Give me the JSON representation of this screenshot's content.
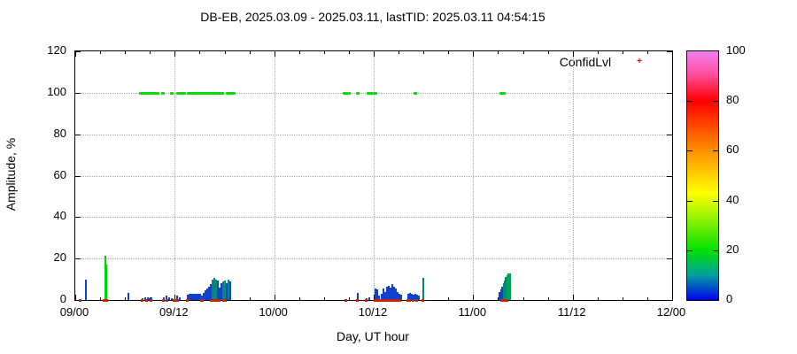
{
  "title": "DB-EB, 2025.03.09 - 2025.03.11, lastTID: 2025.03.11 04:54:15",
  "legend": {
    "label": "ConfidLvl",
    "marker_color": "#e00000",
    "marker_glyph": "+"
  },
  "axes": {
    "x_label": "Day, UT hour",
    "y_label": "Amplitude, %",
    "x_tick_labels": [
      "09/00",
      "09/12",
      "10/00",
      "10/12",
      "11/00",
      "11/12",
      "12/00"
    ],
    "y_tick_labels": [
      "0",
      "20",
      "40",
      "60",
      "80",
      "100",
      "120"
    ],
    "x_range_hours": [
      0,
      72
    ],
    "y_range": [
      0,
      120
    ],
    "x_major_step_hours": 12,
    "x_minor_step_hours": 3,
    "grid": "dotted-gray"
  },
  "colorbar": {
    "title": "",
    "range": [
      0,
      100
    ],
    "tick_labels": [
      "0",
      "20",
      "40",
      "60",
      "80",
      "100"
    ],
    "gradient_stops": [
      {
        "at": 0,
        "color": "#0000ee"
      },
      {
        "at": 10,
        "color": "#00a0a0"
      },
      {
        "at": 20,
        "color": "#00e000"
      },
      {
        "at": 31,
        "color": "#80f000"
      },
      {
        "at": 43,
        "color": "#ffff00"
      },
      {
        "at": 60,
        "color": "#ff9000"
      },
      {
        "at": 80,
        "color": "#ff0000"
      },
      {
        "at": 91,
        "color": "#ff50a0"
      },
      {
        "at": 100,
        "color": "#f080f0"
      }
    ]
  },
  "chart_data": {
    "type": "bar",
    "subtype": "impulse-bars-plus-confidence-scatter",
    "x_unit": "hours from 09/00 UT",
    "ylim": [
      0,
      120
    ],
    "bar_colors": {
      "blue": "#1040cc",
      "teal": "#008878",
      "green": "#00d400",
      "seagreen": "#00a058"
    },
    "mark_color": "#cc2200",
    "dot_color": "#00dd00",
    "bars": [
      [
        1.28,
        10,
        "blue"
      ],
      [
        3.6,
        21.5,
        "green"
      ],
      [
        3.76,
        17,
        "green"
      ],
      [
        6.4,
        3.5,
        "blue"
      ],
      [
        8.1,
        1,
        "blue"
      ],
      [
        8.4,
        1.2,
        "blue"
      ],
      [
        8.76,
        1.5,
        "blue"
      ],
      [
        8.97,
        1,
        "blue"
      ],
      [
        9.19,
        1.2,
        "blue"
      ],
      [
        10.68,
        1.5,
        "blue"
      ],
      [
        11.0,
        2,
        "blue"
      ],
      [
        11.32,
        1.5,
        "blue"
      ],
      [
        11.64,
        1,
        "blue"
      ],
      [
        12.28,
        2,
        "blue"
      ],
      [
        12.61,
        1.5,
        "blue"
      ],
      [
        13.57,
        2.5,
        "blue"
      ],
      [
        13.78,
        3,
        "blue"
      ],
      [
        13.99,
        3,
        "blue"
      ],
      [
        14.2,
        3,
        "blue"
      ],
      [
        14.42,
        3,
        "blue"
      ],
      [
        14.63,
        3,
        "blue"
      ],
      [
        14.84,
        3,
        "blue"
      ],
      [
        15.06,
        3,
        "blue"
      ],
      [
        15.27,
        2,
        "blue"
      ],
      [
        15.49,
        3.5,
        "blue"
      ],
      [
        15.7,
        4.5,
        "blue"
      ],
      [
        15.91,
        5.5,
        "blue"
      ],
      [
        16.13,
        6.5,
        "blue"
      ],
      [
        16.34,
        7.5,
        "blue"
      ],
      [
        16.56,
        10,
        "teal"
      ],
      [
        16.77,
        10.5,
        "teal"
      ],
      [
        16.98,
        10,
        "teal"
      ],
      [
        17.2,
        9.5,
        "blue"
      ],
      [
        17.41,
        6,
        "blue"
      ],
      [
        17.63,
        8,
        "blue"
      ],
      [
        17.84,
        9,
        "teal"
      ],
      [
        18.05,
        9.5,
        "teal"
      ],
      [
        18.27,
        8,
        "blue"
      ],
      [
        18.48,
        10,
        "teal"
      ],
      [
        18.69,
        9,
        "blue"
      ],
      [
        34.08,
        3.5,
        "blue"
      ],
      [
        35.15,
        1,
        "blue"
      ],
      [
        35.47,
        1.5,
        "blue"
      ],
      [
        36.21,
        5.5,
        "blue"
      ],
      [
        36.42,
        5,
        "blue"
      ],
      [
        36.64,
        2,
        "blue"
      ],
      [
        36.96,
        3,
        "blue"
      ],
      [
        37.17,
        5.5,
        "blue"
      ],
      [
        37.38,
        4,
        "blue"
      ],
      [
        37.6,
        6.5,
        "blue"
      ],
      [
        37.81,
        7,
        "blue"
      ],
      [
        38.02,
        6,
        "blue"
      ],
      [
        38.24,
        7.5,
        "blue"
      ],
      [
        38.45,
        6.5,
        "blue"
      ],
      [
        38.66,
        5.5,
        "blue"
      ],
      [
        38.88,
        4,
        "blue"
      ],
      [
        39.09,
        3,
        "blue"
      ],
      [
        39.3,
        2.5,
        "blue"
      ],
      [
        40.16,
        3,
        "blue"
      ],
      [
        40.37,
        3.5,
        "blue"
      ],
      [
        40.59,
        3,
        "blue"
      ],
      [
        40.8,
        2.5,
        "blue"
      ],
      [
        41.02,
        3,
        "blue"
      ],
      [
        41.23,
        2.5,
        "blue"
      ],
      [
        41.44,
        2,
        "blue"
      ],
      [
        41.98,
        10.5,
        "teal"
      ],
      [
        51.17,
        4,
        "blue"
      ],
      [
        51.33,
        5,
        "blue"
      ],
      [
        51.49,
        6.5,
        "blue"
      ],
      [
        51.65,
        8,
        "teal"
      ],
      [
        51.81,
        9.5,
        "teal"
      ],
      [
        51.97,
        11,
        "teal"
      ],
      [
        52.13,
        12,
        "seagreen"
      ],
      [
        52.29,
        13,
        "seagreen"
      ],
      [
        52.45,
        13,
        "seagreen"
      ]
    ],
    "confidence_dots_amplitude": 100,
    "confidence_dots_t": [
      7.9,
      8.12,
      8.33,
      8.55,
      8.76,
      8.97,
      9.19,
      9.4,
      9.61,
      9.93,
      10.58,
      11.64,
      12.39,
      12.61,
      12.82,
      13.14,
      13.67,
      13.83,
      13.99,
      14.15,
      14.31,
      14.47,
      14.63,
      14.79,
      14.95,
      15.11,
      15.27,
      15.43,
      15.59,
      15.75,
      15.91,
      16.07,
      16.23,
      16.4,
      16.56,
      16.72,
      16.88,
      17.04,
      17.2,
      17.41,
      17.73,
      18.37,
      18.59,
      18.8,
      19.12,
      32.47,
      32.69,
      33.01,
      34.08,
      35.36,
      35.57,
      35.79,
      36.21,
      41.02,
      51.38,
      51.54,
      51.7
    ],
    "baseline_marks": [
      [
        0.53,
        0.32
      ],
      [
        3.42,
        0.64
      ],
      [
        8.01,
        0.32
      ],
      [
        8.55,
        0.32
      ],
      [
        9.08,
        0.32
      ],
      [
        10.58,
        0.32
      ],
      [
        11.0,
        0.32
      ],
      [
        11.86,
        0.43
      ],
      [
        12.28,
        0.32
      ],
      [
        13.46,
        0.32
      ],
      [
        15.17,
        0.43
      ],
      [
        16.34,
        1.28
      ],
      [
        17.84,
        0.53
      ],
      [
        32.58,
        0.32
      ],
      [
        33.97,
        0.32
      ],
      [
        35.04,
        0.32
      ],
      [
        36.1,
        0.43
      ],
      [
        36.53,
        0.32
      ],
      [
        36.85,
        0.32
      ],
      [
        37.17,
        0.32
      ],
      [
        37.49,
        0.32
      ],
      [
        37.81,
        0.32
      ],
      [
        38.13,
        0.32
      ],
      [
        38.45,
        0.32
      ],
      [
        38.77,
        0.32
      ],
      [
        39.09,
        0.32
      ],
      [
        40.06,
        0.53
      ],
      [
        40.7,
        0.32
      ],
      [
        41.13,
        0.32
      ],
      [
        41.88,
        0.32
      ],
      [
        51.38,
        0.96
      ]
    ]
  }
}
